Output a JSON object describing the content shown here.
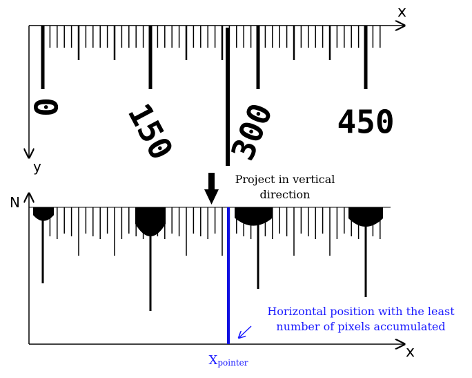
{
  "top_panel": {
    "x_axis_label": "x",
    "y_axis_label": "y",
    "scale_labels": [
      "0",
      "150",
      "300",
      "450"
    ]
  },
  "projection_note": "Project in vertical direction",
  "bottom_panel": {
    "y_axis_label": "N",
    "x_axis_label": "x",
    "annotation": "Horizontal position with the least number of pixels accumulated",
    "pointer_label": {
      "main": "X",
      "subscript": "pointer"
    }
  }
}
